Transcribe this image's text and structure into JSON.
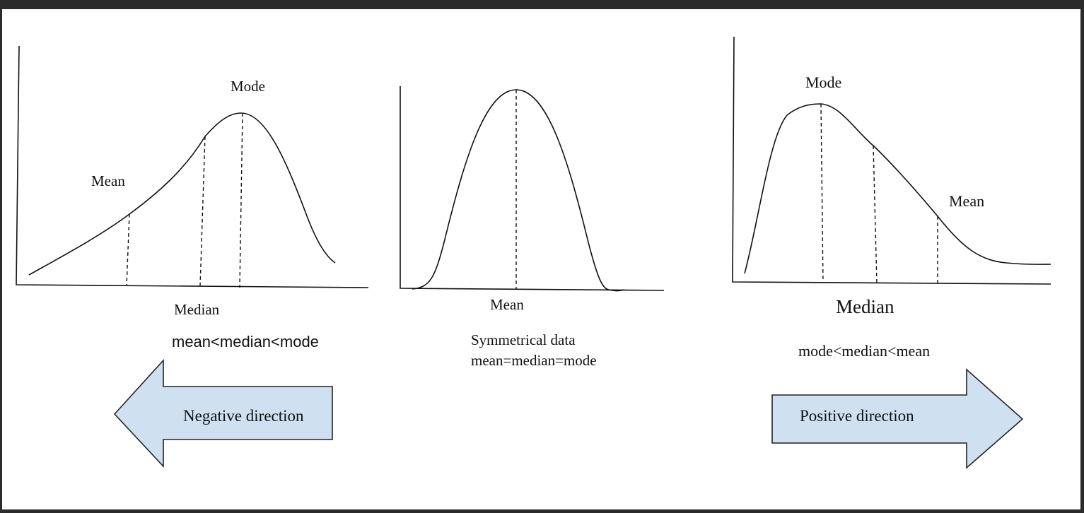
{
  "left_panel": {
    "mean_label": "Mean",
    "mode_label": "Mode",
    "median_label": "Median",
    "relation": "mean<median<mode",
    "arrow_text": "Negative direction"
  },
  "middle_panel": {
    "mean_label": "Mean",
    "caption_line1": "Symmetrical data",
    "caption_line2": "mean=median=mode"
  },
  "right_panel": {
    "mode_label": "Mode",
    "mean_label": "Mean",
    "median_label": "Median",
    "relation": "mode<median<mean",
    "arrow_text": "Positive direction"
  },
  "colors": {
    "arrow_fill": "#cfe0f1",
    "frame": "#2b2b2b"
  }
}
